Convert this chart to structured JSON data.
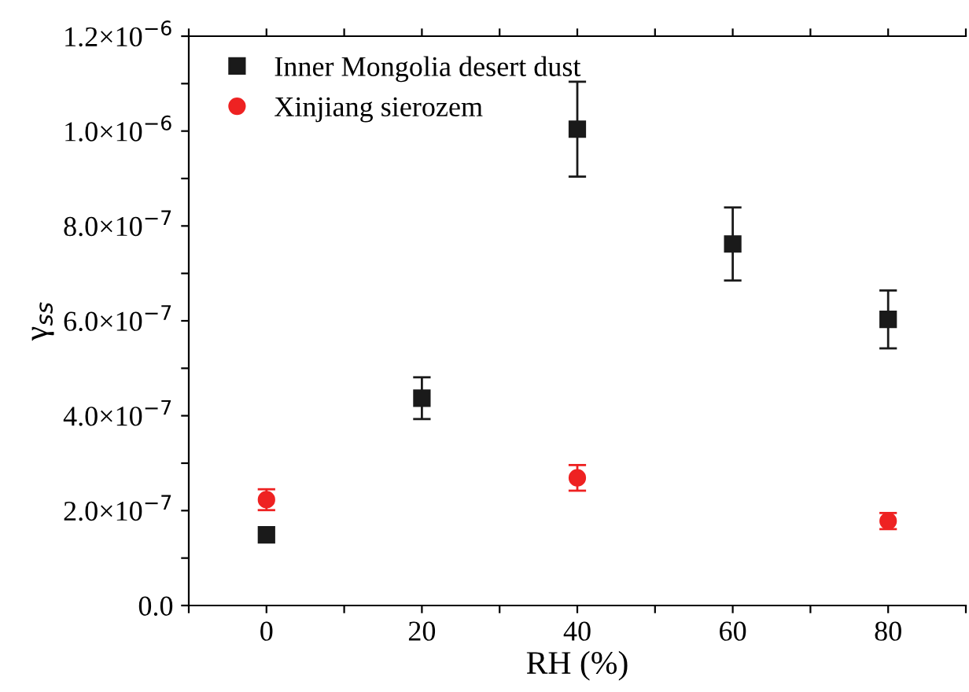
{
  "chart_data": {
    "type": "scatter",
    "xlabel": "RH (%)",
    "ylabel": "γ$_{ss}$",
    "xlim": [
      -10,
      90
    ],
    "xticks": [
      {
        "value": -10,
        "label": null
      },
      0,
      {
        "value": 10,
        "label": null
      },
      20,
      {
        "value": 30,
        "label": null
      },
      40,
      {
        "value": 50,
        "label": null
      },
      60,
      {
        "value": 70,
        "label": null
      },
      80,
      {
        "value": 90,
        "label": null
      }
    ],
    "ylim": [
      0,
      1.2e-06
    ],
    "yticks": [
      {
        "value": 0,
        "label": "0.0"
      },
      {
        "value": 1e-07,
        "label": null
      },
      {
        "value": 2e-07,
        "label": "2.0×10$^{−7}$"
      },
      {
        "value": 3e-07,
        "label": null
      },
      {
        "value": 4e-07,
        "label": "4.0×10$^{−7}$"
      },
      {
        "value": 5e-07,
        "label": null
      },
      {
        "value": 6e-07,
        "label": "6.0×10$^{−7}$"
      },
      {
        "value": 7e-07,
        "label": null
      },
      {
        "value": 8e-07,
        "label": "8.0×10$^{−7}$"
      },
      {
        "value": 9e-07,
        "label": null
      },
      {
        "value": 1e-06,
        "label": "1.0×10$^{−6}$"
      },
      {
        "value": 1.1e-06,
        "label": null
      },
      {
        "value": 1.2e-06,
        "label": "1.2×10$^{−6}$"
      }
    ],
    "grid": false,
    "legend": "top left",
    "series": [
      {
        "name": "Inner Mongolia desert dust",
        "color": "#1a1a1a",
        "marker": "square",
        "x": [
          0,
          20,
          40,
          60,
          80
        ],
        "values": [
          1.49e-07,
          4.37e-07,
          1.004e-06,
          7.62e-07,
          6.03e-07
        ],
        "errors": [
          null,
          4.4e-08,
          1e-07,
          7.7e-08,
          6.1e-08
        ]
      },
      {
        "name": "Xinjiang sierozem",
        "color": "#ee2222",
        "marker": "circle",
        "x": [
          0,
          40,
          80
        ],
        "values": [
          2.23e-07,
          2.69e-07,
          1.78e-07
        ],
        "errors": [
          2.2e-08,
          2.7e-08,
          1.7e-08
        ]
      }
    ]
  }
}
